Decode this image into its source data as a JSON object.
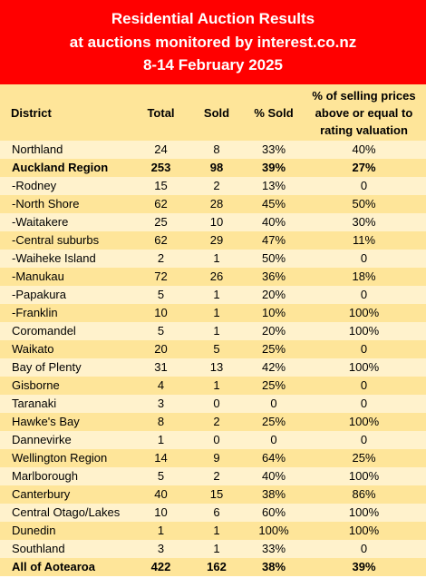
{
  "banner": {
    "line1": "Residential Auction Results",
    "line2": "at auctions monitored by interest.co.nz",
    "line3": "8-14 February 2025"
  },
  "colors": {
    "banner": "#ff0000",
    "header": "#fee599",
    "row_light": "#fff2cc",
    "row_dark": "#fee599"
  },
  "columns": {
    "district": "District",
    "total": "Total",
    "sold": "Sold",
    "pct_sold": "% Sold",
    "pct_above": "% of selling prices above or equal to rating valuation"
  },
  "rows": [
    {
      "district": "Northland",
      "total": "24",
      "sold": "8",
      "pct_sold": "33%",
      "pct_above": "40%",
      "bold": false
    },
    {
      "district": "Auckland Region",
      "total": "253",
      "sold": "98",
      "pct_sold": "39%",
      "pct_above": "27%",
      "bold": true
    },
    {
      "district": "-Rodney",
      "total": "15",
      "sold": "2",
      "pct_sold": "13%",
      "pct_above": "0",
      "bold": false
    },
    {
      "district": "-North Shore",
      "total": "62",
      "sold": "28",
      "pct_sold": "45%",
      "pct_above": "50%",
      "bold": false
    },
    {
      "district": "-Waitakere",
      "total": "25",
      "sold": "10",
      "pct_sold": "40%",
      "pct_above": "30%",
      "bold": false
    },
    {
      "district": "-Central suburbs",
      "total": "62",
      "sold": "29",
      "pct_sold": "47%",
      "pct_above": "11%",
      "bold": false
    },
    {
      "district": "-Waiheke Island",
      "total": "2",
      "sold": "1",
      "pct_sold": "50%",
      "pct_above": "0",
      "bold": false
    },
    {
      "district": "-Manukau",
      "total": "72",
      "sold": "26",
      "pct_sold": "36%",
      "pct_above": "18%",
      "bold": false
    },
    {
      "district": "-Papakura",
      "total": "5",
      "sold": "1",
      "pct_sold": "20%",
      "pct_above": "0",
      "bold": false
    },
    {
      "district": "-Franklin",
      "total": "10",
      "sold": "1",
      "pct_sold": "10%",
      "pct_above": "100%",
      "bold": false
    },
    {
      "district": "Coromandel",
      "total": "5",
      "sold": "1",
      "pct_sold": "20%",
      "pct_above": "100%",
      "bold": false
    },
    {
      "district": "Waikato",
      "total": "20",
      "sold": "5",
      "pct_sold": "25%",
      "pct_above": "0",
      "bold": false
    },
    {
      "district": "Bay of Plenty",
      "total": "31",
      "sold": "13",
      "pct_sold": "42%",
      "pct_above": "100%",
      "bold": false
    },
    {
      "district": "Gisborne",
      "total": "4",
      "sold": "1",
      "pct_sold": "25%",
      "pct_above": "0",
      "bold": false
    },
    {
      "district": "Taranaki",
      "total": "3",
      "sold": "0",
      "pct_sold": "0",
      "pct_above": "0",
      "bold": false
    },
    {
      "district": "Hawke's Bay",
      "total": "8",
      "sold": "2",
      "pct_sold": "25%",
      "pct_above": "100%",
      "bold": false
    },
    {
      "district": "Dannevirke",
      "total": "1",
      "sold": "0",
      "pct_sold": "0",
      "pct_above": "0",
      "bold": false
    },
    {
      "district": "Wellington Region",
      "total": "14",
      "sold": "9",
      "pct_sold": "64%",
      "pct_above": "25%",
      "bold": false
    },
    {
      "district": "Marlborough",
      "total": "5",
      "sold": "2",
      "pct_sold": "40%",
      "pct_above": "100%",
      "bold": false
    },
    {
      "district": "Canterbury",
      "total": "40",
      "sold": "15",
      "pct_sold": "38%",
      "pct_above": "86%",
      "bold": false
    },
    {
      "district": "Central Otago/Lakes",
      "total": "10",
      "sold": "6",
      "pct_sold": "60%",
      "pct_above": "100%",
      "bold": false
    },
    {
      "district": "Dunedin",
      "total": "1",
      "sold": "1",
      "pct_sold": "100%",
      "pct_above": "100%",
      "bold": false
    },
    {
      "district": "Southland",
      "total": "3",
      "sold": "1",
      "pct_sold": "33%",
      "pct_above": "0",
      "bold": false
    },
    {
      "district": "All of Aotearoa",
      "total": "422",
      "sold": "162",
      "pct_sold": "38%",
      "pct_above": "39%",
      "bold": true
    }
  ]
}
